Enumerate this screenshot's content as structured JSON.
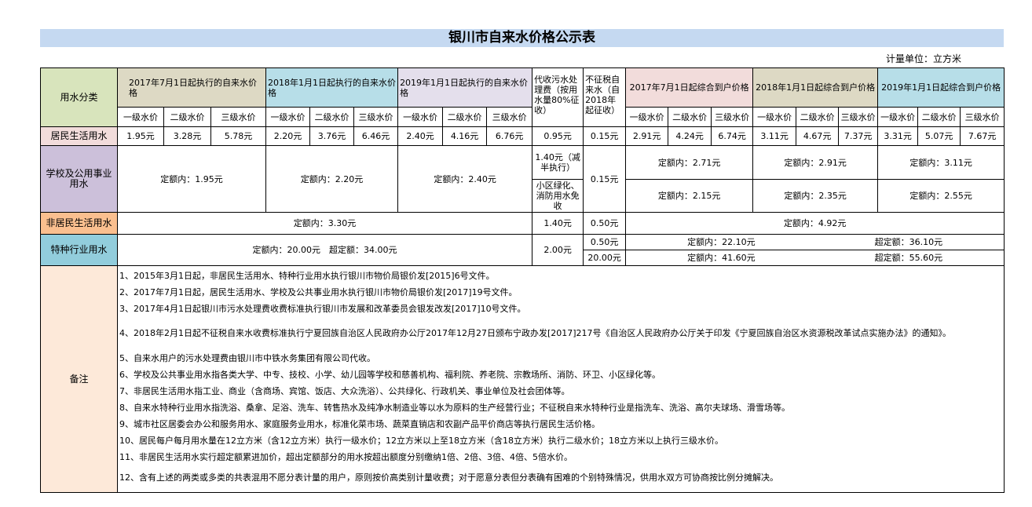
{
  "title": "银川市自来水价格公示表",
  "unit": "计量单位：立方米",
  "colors": {
    "title_bg": "#c5d9f1",
    "category_header": "#d8e4bc",
    "h2017": "#ddd9c4",
    "h2018": "#b7dee8",
    "h2019": "#e4dfec",
    "i2017": "#f2dcdb",
    "i2018": "#ddd9c4",
    "i2019": "#b7dee8",
    "resident": "#f2dcdb",
    "school": "#ccc0da",
    "nonresident": "#fabf8f",
    "special": "#92cddc",
    "notes": "#fde9d9"
  },
  "header": {
    "category": "用水分类",
    "supply": [
      "2017年7月1日起执行的自来水价格",
      "2018年1月1日起执行的自来水价格",
      "2019年1月1日起执行的自来水价格"
    ],
    "sewage": "代收污水处理费（按用水量80%征收）",
    "notax": "不征税自来水（自2018年起征收）",
    "integrated": [
      "2017年7月1日起综合到户价格",
      "2018年1月1日起综合到户价格",
      "2019年1月1日起综合到户价格"
    ],
    "tiers": [
      "一级水价",
      "二级水价",
      "三级水价"
    ]
  },
  "rows": {
    "resident": {
      "label": "居民生活用水",
      "supply": [
        "1.95元",
        "3.28元",
        "5.78元",
        "2.20元",
        "3.76元",
        "6.46元",
        "2.40元",
        "4.16元",
        "6.76元"
      ],
      "sewage": "0.95元",
      "notax": "0.15元",
      "integrated": [
        "2.91元",
        "4.24元",
        "6.74元",
        "3.11元",
        "4.67元",
        "7.37元",
        "3.31元",
        "5.07元",
        "7.67元"
      ]
    },
    "school": {
      "label": "学校及公用事业用水",
      "supply": [
        "定额内：1.95元",
        "定额内：2.20元",
        "定额内：2.40元"
      ],
      "sewage": [
        "1.40元（减半执行）",
        "小区绿化、消防用水免收"
      ],
      "notax": "0.15元",
      "integrated_a": [
        "定额内：2.71元",
        "定额内：2.91元",
        "定额内：3.11元"
      ],
      "integrated_b": [
        "定额内：2.15元",
        "定额内：2.35元",
        "定额内：2.55元"
      ]
    },
    "nonresident": {
      "label": "非居民生活用水",
      "supply": "定额内：3.30元",
      "sewage": "1.40元",
      "notax": "0.50元",
      "integrated": "定额内：4.92元"
    },
    "special": {
      "label": "特种行业用水",
      "supply": "定额内：20.00元　超定额：34.00元",
      "sewage": "2.00元",
      "notax": [
        "0.50元",
        "20.00元"
      ],
      "integrated_a": [
        "定额内：22.10元",
        "超定额：36.10元"
      ],
      "integrated_b": [
        "定额内：41.60元",
        "超定额：55.60元"
      ]
    }
  },
  "notes": {
    "label": "备注",
    "items": [
      "1、2015年3月1日起，非居民生活用水、特种行业用水执行银川市物价局银价发[2015]6号文件。",
      "2、2017年7月1日起，居民生活用水、学校及公共事业用水执行银川市物价局银价发[2017]19号文件。",
      "3、2017年4月1日起银川市污水处理费收费标准执行银川市发展和改革委员会银发改发[2017]10号文件。",
      "4、2018年2月1日起不征税自来水收费标准执行宁夏回族自治区人民政府办公厅2017年12月27日颁布宁政办发[2017]217号《自治区人民政府办公厅关于印发《宁夏回族自治区水资源税改革试点实施办法》的通知》。",
      "5、自来水用户的污水处理费由银川市中铁水务集团有限公司代收。",
      "6、学校及公共事业用水指各类大学、中专、技校、小学、幼儿园等学校和慈善机构、福利院、养老院、宗教场所、消防、环卫、小区绿化等。",
      "7、非居民生活用水指工业、商业（含商场、宾馆、饭店、大众洗浴）、公共绿化、行政机关、事业单位及社会团体等。",
      "8、自来水特种行业用水指洗浴、桑拿、足浴、洗车、转售热水及纯净水制造业等以水为原料的生产经营行业；不征税自来水特种行业是指洗车、洗浴、高尔夫球场、滑雪场等。",
      "9、城市社区居委会办公和服务用水、家庭服务业用水，标准化菜市场、蔬菜直销店和农副产品平价商店等执行居民生活价格。",
      "10、居民每户每月用水量在12立方米（含12立方米）执行一级水价；12立方米以上至18立方米（含18立方米）执行二级水价；18立方米以上执行三级水价。",
      "11、非居民生活用水实行超定额累进加价，超出定额部分的用水按超出额度分别缴纳1倍、2倍、3倍、4倍、5倍水价。",
      "12、含有上述的两类或多类的共表混用不愿分表计量的用户，原则按价高类别计量收费；对于愿意分表但分表确有困难的个别特殊情况，供用水双方可协商按比例分摊解决。"
    ]
  }
}
